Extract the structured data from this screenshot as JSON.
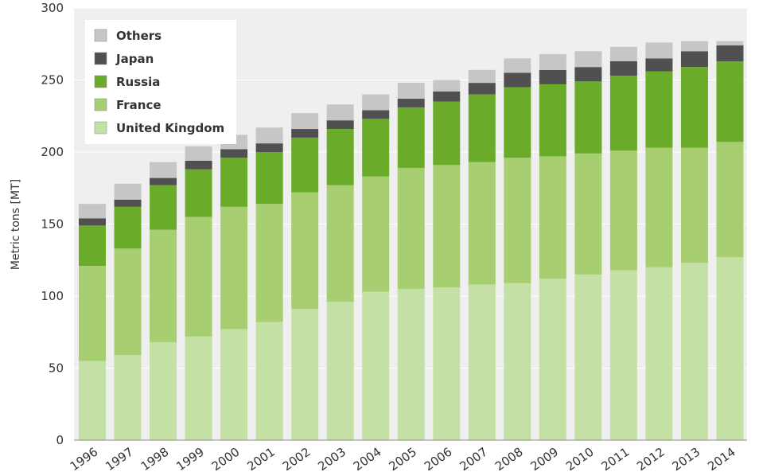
{
  "chart_data": {
    "type": "bar",
    "stacked": true,
    "ylabel": "Metric tons [MT]",
    "ylim": [
      0,
      300
    ],
    "yticks": [
      0,
      50,
      100,
      150,
      200,
      250,
      300
    ],
    "grid": true,
    "legend_position": "top-left",
    "categories": [
      "1996",
      "1997",
      "1998",
      "1999",
      "2000",
      "2001",
      "2002",
      "2003",
      "2004",
      "2005",
      "2006",
      "2007",
      "2008",
      "2009",
      "2010",
      "2011",
      "2012",
      "2013",
      "2014"
    ],
    "series": [
      {
        "name": "United Kingdom",
        "color": "#c5e0a5",
        "values": [
          55,
          59,
          68,
          72,
          77,
          82,
          91,
          96,
          103,
          105,
          106,
          108,
          109,
          112,
          115,
          118,
          120,
          123,
          127
        ]
      },
      {
        "name": "France",
        "color": "#a7cf72",
        "values": [
          66,
          74,
          78,
          83,
          85,
          82,
          81,
          81,
          80,
          84,
          85,
          85,
          87,
          85,
          84,
          83,
          83,
          80,
          80
        ]
      },
      {
        "name": "Russia",
        "color": "#6aab2a",
        "values": [
          28,
          29,
          31,
          33,
          34,
          36,
          38,
          39,
          40,
          42,
          44,
          47,
          49,
          50,
          50,
          52,
          53,
          56,
          56
        ]
      },
      {
        "name": "Japan",
        "color": "#505050",
        "values": [
          5,
          5,
          5,
          6,
          6,
          6,
          6,
          6,
          6,
          6,
          7,
          8,
          10,
          10,
          10,
          10,
          9,
          11,
          11
        ]
      },
      {
        "name": "Others",
        "color": "#c6c6c6",
        "values": [
          10,
          11,
          11,
          10,
          10,
          11,
          11,
          11,
          11,
          11,
          8,
          9,
          10,
          11,
          11,
          10,
          11,
          7,
          3
        ]
      }
    ]
  }
}
